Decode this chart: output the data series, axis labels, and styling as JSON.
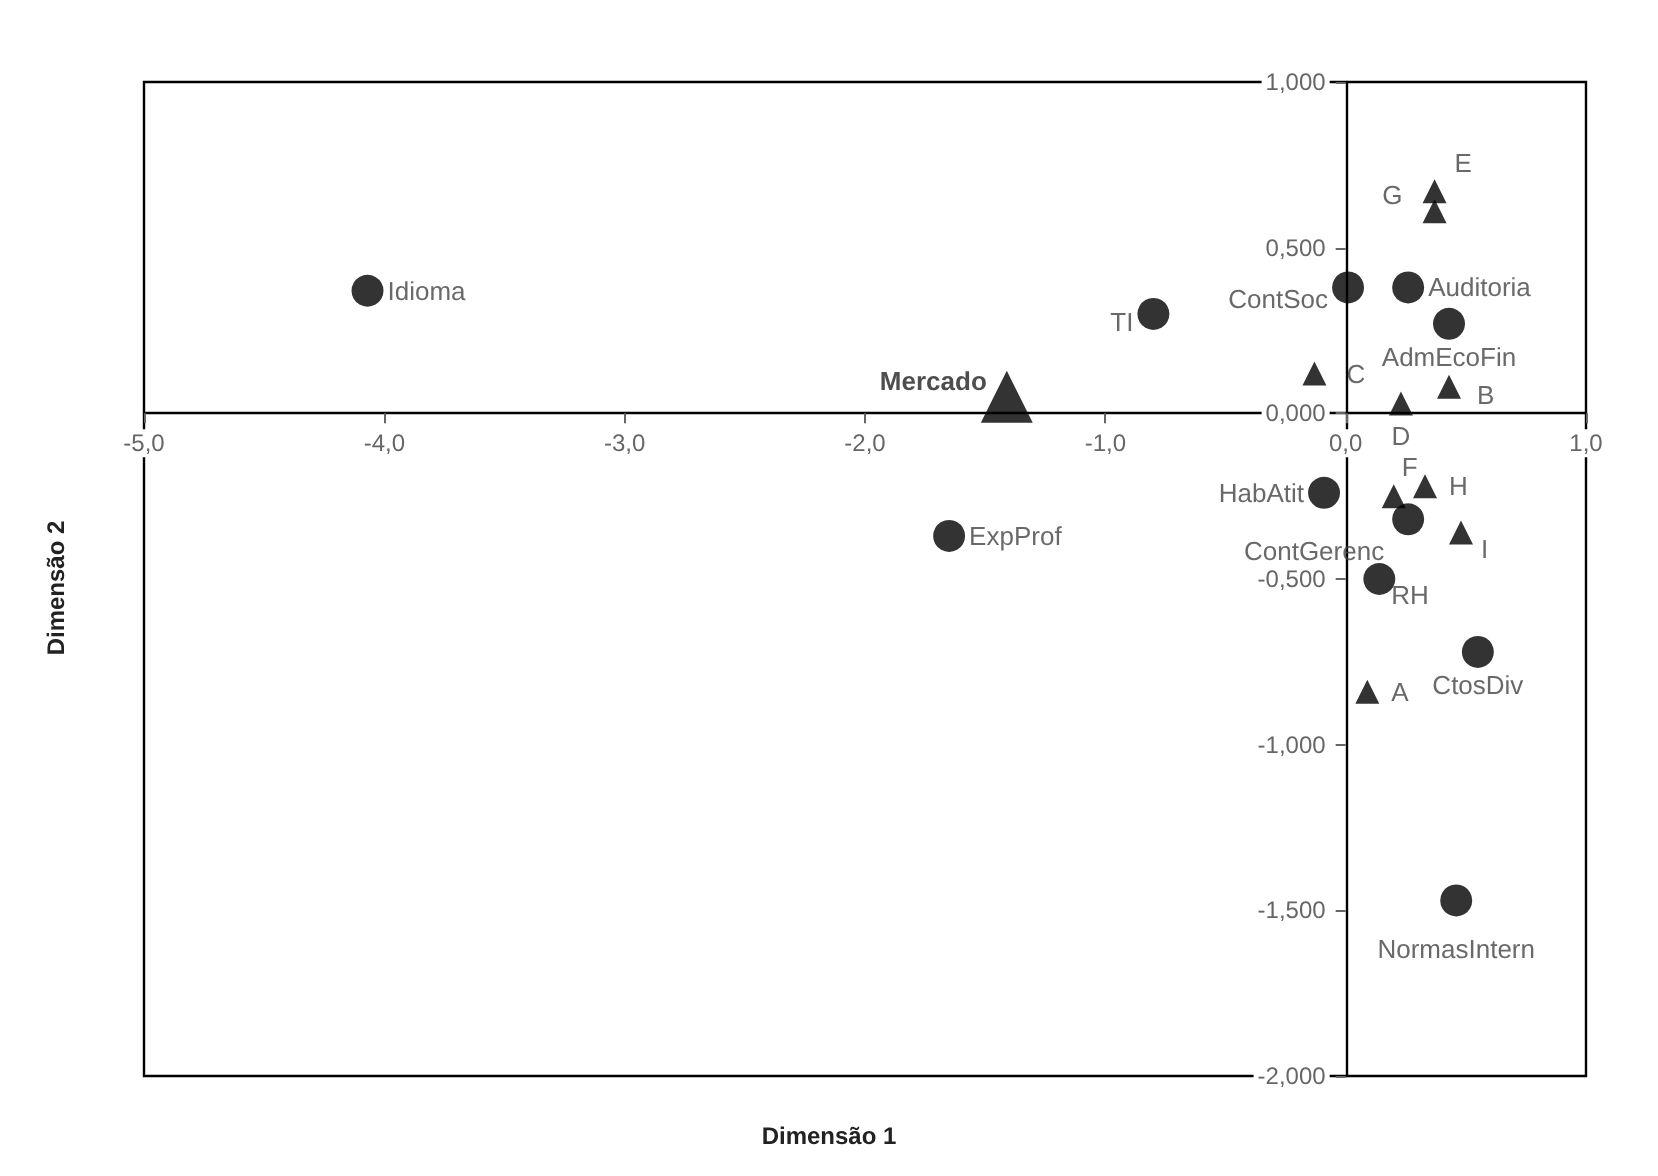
{
  "chart_data": {
    "type": "scatter",
    "xlabel": "Dimensão 1",
    "ylabel": "Dimensão 2",
    "xlim": [
      -5,
      1
    ],
    "ylim": [
      -2,
      1
    ],
    "xticks": [
      {
        "value": -5,
        "label": "-5,0"
      },
      {
        "value": -4,
        "label": "-4,0"
      },
      {
        "value": -3,
        "label": "-3,0"
      },
      {
        "value": -2,
        "label": "-2,0"
      },
      {
        "value": -1,
        "label": "-1,0"
      },
      {
        "value": 0,
        "label": "0,0"
      },
      {
        "value": 1,
        "label": "1,0"
      }
    ],
    "yticks": [
      {
        "value": -2,
        "label": "-2,000"
      },
      {
        "value": -1.5,
        "label": "-1,500"
      },
      {
        "value": -1,
        "label": "-1,000"
      },
      {
        "value": -0.5,
        "label": "-0,500"
      },
      {
        "value": 0,
        "label": "0,000"
      },
      {
        "value": 0.5,
        "label": "0,500"
      },
      {
        "value": 1,
        "label": "1,000"
      }
    ],
    "grid": false,
    "series": [
      {
        "marker": "circle",
        "color": "#000000",
        "x": [
          -4.07,
          -0.8,
          0.01,
          0.26,
          0.43,
          -0.09,
          0.26,
          0.14,
          -1.65,
          0.55,
          0.46
        ],
        "values": [
          0.37,
          0.3,
          0.38,
          0.38,
          0.27,
          -0.24,
          -0.32,
          -0.5,
          -0.37,
          -0.72,
          -1.47
        ]
      },
      {
        "marker": "triangle",
        "color": "#000000",
        "x": [
          0.37,
          0.37,
          -0.13,
          0.43,
          0.23,
          0.2,
          0.33,
          0.48,
          0.09
        ],
        "values": [
          0.67,
          0.61,
          0.12,
          0.08,
          0.03,
          -0.25,
          -0.22,
          -0.36,
          -0.84
        ]
      },
      {
        "marker": "triangle",
        "color": "#000000",
        "x": [
          -1.41
        ],
        "values": [
          0.05
        ]
      }
    ],
    "annotations": [
      {
        "text": "Idioma",
        "x": -4.07,
        "y": 0.37
      },
      {
        "text": "TI",
        "x": -0.8,
        "y": 0.3
      },
      {
        "text": "ContSoc",
        "x": 0.01,
        "y": 0.38
      },
      {
        "text": "Auditoria",
        "x": 0.26,
        "y": 0.38
      },
      {
        "text": "AdmEcoFin",
        "x": 0.43,
        "y": 0.27
      },
      {
        "text": "HabAtit",
        "x": -0.09,
        "y": -0.24
      },
      {
        "text": "ContGerenc",
        "x": 0.26,
        "y": -0.32
      },
      {
        "text": "RH",
        "x": 0.14,
        "y": -0.5
      },
      {
        "text": "ExpProf",
        "x": -1.65,
        "y": -0.37
      },
      {
        "text": "CtosDiv",
        "x": 0.55,
        "y": -0.72
      },
      {
        "text": "NormasIntern",
        "x": 0.46,
        "y": -1.47
      },
      {
        "text": "E",
        "x": 0.37,
        "y": 0.67
      },
      {
        "text": "G",
        "x": 0.37,
        "y": 0.61
      },
      {
        "text": "C",
        "x": -0.13,
        "y": 0.12
      },
      {
        "text": "B",
        "x": 0.43,
        "y": 0.08
      },
      {
        "text": "D",
        "x": 0.23,
        "y": 0.03
      },
      {
        "text": "F",
        "x": 0.2,
        "y": -0.25
      },
      {
        "text": "H",
        "x": 0.33,
        "y": -0.22
      },
      {
        "text": "I",
        "x": 0.48,
        "y": -0.36
      },
      {
        "text": "A",
        "x": 0.09,
        "y": -0.84
      },
      {
        "text": "Mercado",
        "x": -1.41,
        "y": 0.05
      }
    ]
  }
}
